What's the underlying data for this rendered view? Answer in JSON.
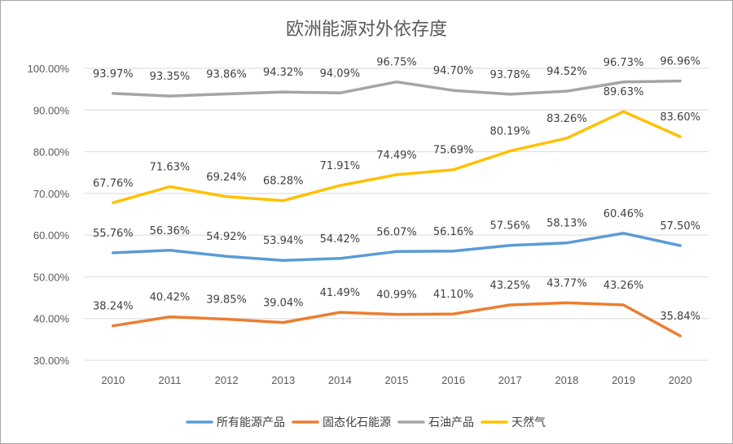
{
  "chart_data": {
    "type": "line",
    "title": "欧洲能源对外依存度",
    "xlabel": "",
    "ylabel": "",
    "categories": [
      "2010",
      "2011",
      "2012",
      "2013",
      "2014",
      "2015",
      "2016",
      "2017",
      "2018",
      "2019",
      "2020"
    ],
    "ylim": [
      0.3,
      1.0
    ],
    "y_ticks": [
      0.3,
      0.4,
      0.5,
      0.6,
      0.7,
      0.8,
      0.9,
      1.0
    ],
    "y_tick_labels": [
      "30.00%",
      "40.00%",
      "50.00%",
      "60.00%",
      "70.00%",
      "80.00%",
      "90.00%",
      "100.00%"
    ],
    "grid": true,
    "legend_position": "bottom",
    "series": [
      {
        "name": "所有能源产品",
        "color": "#5b9bd5",
        "values": [
          0.5576,
          0.5636,
          0.5492,
          0.5394,
          0.5442,
          0.5607,
          0.5616,
          0.5756,
          0.5813,
          0.6046,
          0.575
        ],
        "labels": [
          "55.76%",
          "56.36%",
          "54.92%",
          "53.94%",
          "54.42%",
          "56.07%",
          "56.16%",
          "57.56%",
          "58.13%",
          "60.46%",
          "57.50%"
        ]
      },
      {
        "name": "固态化石能源",
        "color": "#ed7d31",
        "values": [
          0.3824,
          0.4042,
          0.3985,
          0.3904,
          0.4149,
          0.4099,
          0.411,
          0.4325,
          0.4377,
          0.4326,
          0.3584
        ],
        "labels": [
          "38.24%",
          "40.42%",
          "39.85%",
          "39.04%",
          "41.49%",
          "40.99%",
          "41.10%",
          "43.25%",
          "43.77%",
          "43.26%",
          "35.84%"
        ]
      },
      {
        "name": "石油产品",
        "color": "#a5a5a5",
        "values": [
          0.9397,
          0.9335,
          0.9386,
          0.9432,
          0.9409,
          0.9675,
          0.947,
          0.9378,
          0.9452,
          0.9673,
          0.9696
        ],
        "labels": [
          "93.97%",
          "93.35%",
          "93.86%",
          "94.32%",
          "94.09%",
          "96.75%",
          "94.70%",
          "93.78%",
          "94.52%",
          "96.73%",
          "96.96%"
        ]
      },
      {
        "name": "天然气",
        "color": "#ffc000",
        "values": [
          0.6776,
          0.7163,
          0.6924,
          0.6828,
          0.7191,
          0.7449,
          0.7569,
          0.8019,
          0.8326,
          0.8963,
          0.836
        ],
        "labels": [
          "67.76%",
          "71.63%",
          "69.24%",
          "68.28%",
          "71.91%",
          "74.49%",
          "75.69%",
          "80.19%",
          "83.26%",
          "89.63%",
          "83.60%"
        ]
      }
    ]
  }
}
